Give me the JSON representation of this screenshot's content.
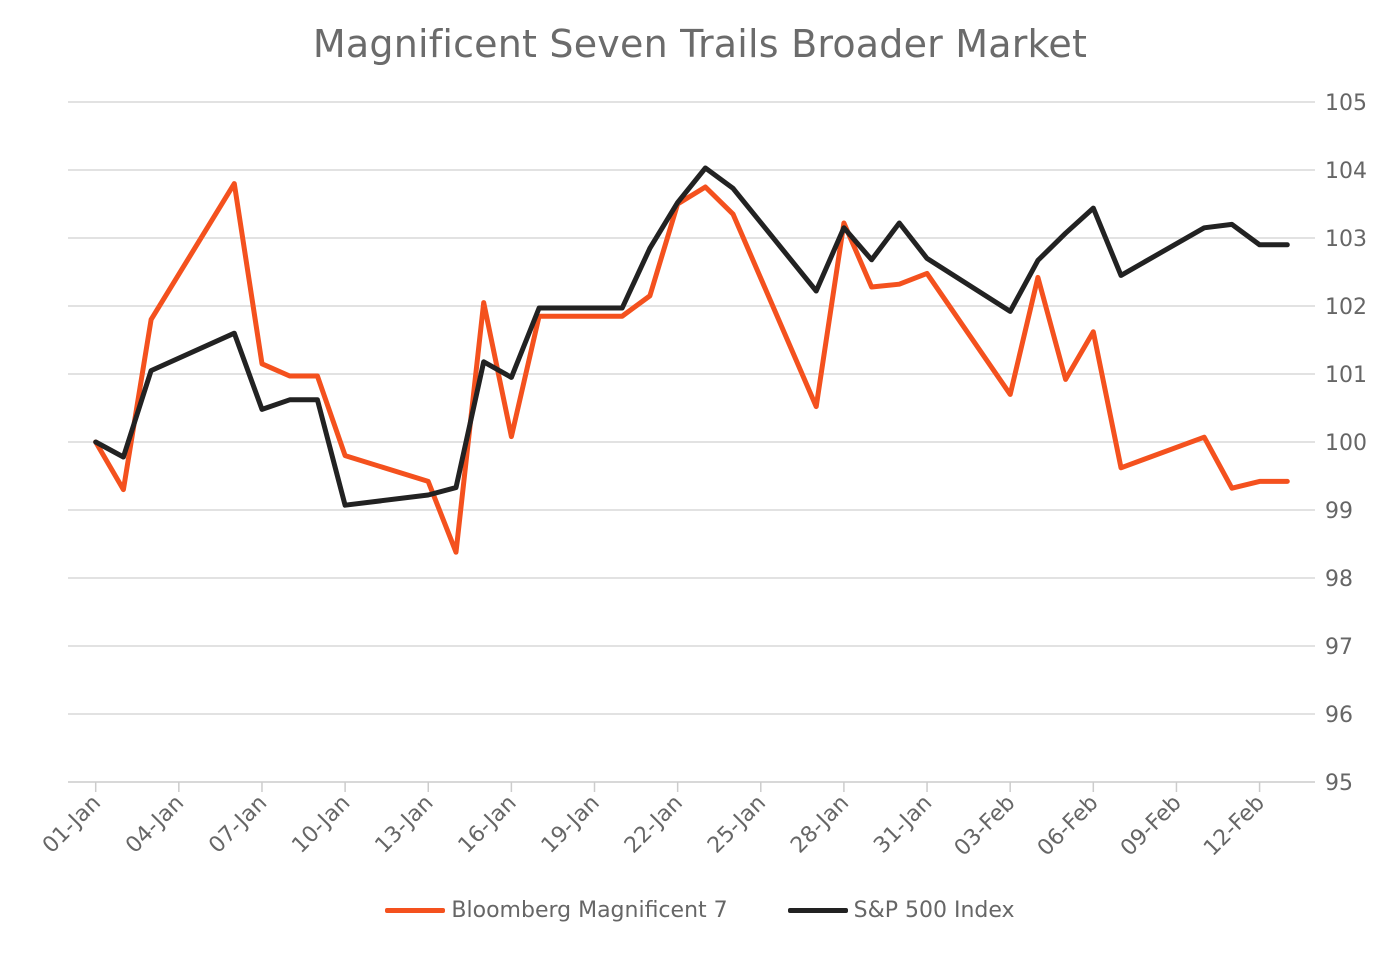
{
  "chart_data": {
    "type": "line",
    "title": "Magnificent Seven Trails Broader Market",
    "xlabel": "",
    "ylabel": "",
    "x": [
      "01-Jan",
      "02-Jan",
      "03-Jan",
      "06-Jan",
      "07-Jan",
      "08-Jan",
      "09-Jan",
      "10-Jan",
      "13-Jan",
      "14-Jan",
      "15-Jan",
      "16-Jan",
      "17-Jan",
      "20-Jan",
      "21-Jan",
      "22-Jan",
      "23-Jan",
      "24-Jan",
      "27-Jan",
      "28-Jan",
      "29-Jan",
      "30-Jan",
      "31-Jan",
      "03-Feb",
      "04-Feb",
      "05-Feb",
      "06-Feb",
      "07-Feb",
      "10-Feb",
      "11-Feb",
      "12-Feb",
      "13-Feb"
    ],
    "x_tick_labels": [
      "01-Jan",
      "04-Jan",
      "07-Jan",
      "10-Jan",
      "13-Jan",
      "16-Jan",
      "19-Jan",
      "22-Jan",
      "25-Jan",
      "28-Jan",
      "31-Jan",
      "03-Feb",
      "06-Feb",
      "09-Feb",
      "12-Feb"
    ],
    "x_range": [
      "31-Dec",
      "14-Feb"
    ],
    "ylim": [
      95,
      105
    ],
    "y_ticks": [
      95,
      96,
      97,
      98,
      99,
      100,
      101,
      102,
      103,
      104,
      105
    ],
    "y_axis_side": "right",
    "grid": "horizontal",
    "legend_position": "bottom",
    "series": [
      {
        "name": "Bloomberg Magnificent 7",
        "color": "#f4511e",
        "values": [
          100.0,
          99.3,
          101.8,
          103.8,
          101.15,
          100.97,
          100.97,
          99.8,
          99.42,
          98.38,
          102.05,
          100.08,
          101.85,
          101.85,
          102.15,
          103.5,
          103.75,
          103.35,
          100.52,
          103.22,
          102.28,
          102.32,
          102.48,
          100.7,
          102.42,
          100.92,
          101.62,
          99.62,
          100.07,
          99.32,
          99.42,
          99.42
        ]
      },
      {
        "name": "S&P 500 Index",
        "color": "#222222",
        "values": [
          100.0,
          99.78,
          101.05,
          101.6,
          100.48,
          100.62,
          100.62,
          99.07,
          99.22,
          99.33,
          101.18,
          100.95,
          101.97,
          101.97,
          102.85,
          103.52,
          104.03,
          103.73,
          102.22,
          103.15,
          102.68,
          103.22,
          102.7,
          101.92,
          102.67,
          103.07,
          103.44,
          102.45,
          103.15,
          103.2,
          102.9,
          102.9
        ]
      }
    ]
  }
}
